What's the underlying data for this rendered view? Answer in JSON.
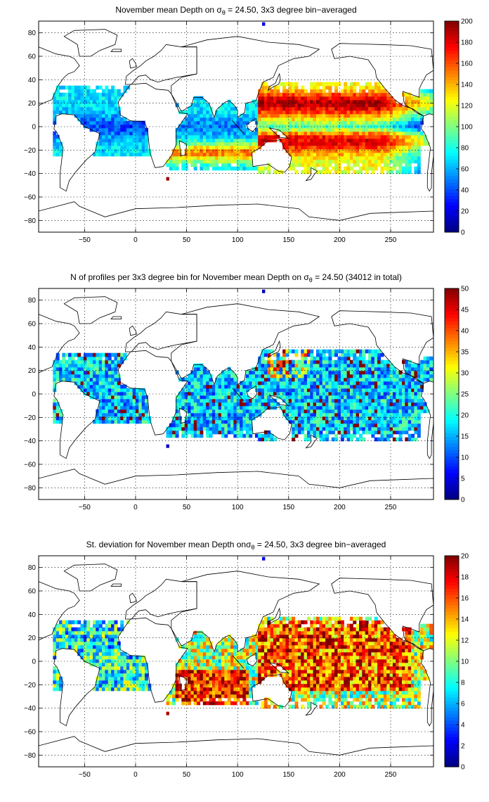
{
  "chart_data": [
    {
      "type": "heatmap",
      "title_prefix": "November mean Depth on ",
      "title_symbol": "σ",
      "title_subscript": "θ",
      "title_suffix": " = 24.50, 3x3 degree bin−averaged",
      "xticks": [
        -50,
        0,
        50,
        100,
        150,
        200,
        250
      ],
      "yticks": [
        80,
        60,
        40,
        20,
        0,
        -20,
        -40,
        -60,
        -80
      ],
      "xlim": [
        -95,
        292
      ],
      "ylim": [
        -90,
        90
      ],
      "grid": true,
      "colorbar": {
        "min": 0,
        "max": 200,
        "ticks": [
          200,
          180,
          160,
          140,
          120,
          100,
          80,
          60,
          40,
          20,
          0
        ],
        "colormap": "jet"
      }
    },
    {
      "type": "heatmap",
      "title_prefix": "N of profiles per 3x3 degree bin for November mean Depth on ",
      "title_symbol": "σ",
      "title_subscript": "θ",
      "title_suffix": " = 24.50 (34012 in total)",
      "xticks": [
        -50,
        0,
        50,
        100,
        150,
        200,
        250
      ],
      "yticks": [
        80,
        60,
        40,
        20,
        0,
        -20,
        -40,
        -60,
        -80
      ],
      "xlim": [
        -95,
        292
      ],
      "ylim": [
        -90,
        90
      ],
      "grid": true,
      "colorbar": {
        "min": 0,
        "max": 50,
        "ticks": [
          50,
          45,
          40,
          35,
          30,
          25,
          20,
          15,
          10,
          5,
          0
        ],
        "colormap": "jet"
      }
    },
    {
      "type": "heatmap",
      "title_prefix": "St. deviation for November mean Depth on",
      "title_symbol": "σ",
      "title_subscript": "θ",
      "title_suffix": " = 24.50, 3x3 degree bin−averaged",
      "xticks": [
        -50,
        0,
        50,
        100,
        150,
        200,
        250
      ],
      "yticks": [
        80,
        60,
        40,
        20,
        0,
        -20,
        -40,
        -60,
        -80
      ],
      "xlim": [
        -95,
        292
      ],
      "ylim": [
        -90,
        90
      ],
      "grid": true,
      "colorbar": {
        "min": 0,
        "max": 20,
        "ticks": [
          20,
          18,
          16,
          14,
          12,
          10,
          8,
          6,
          4,
          2,
          0
        ],
        "colormap": "jet"
      }
    }
  ]
}
